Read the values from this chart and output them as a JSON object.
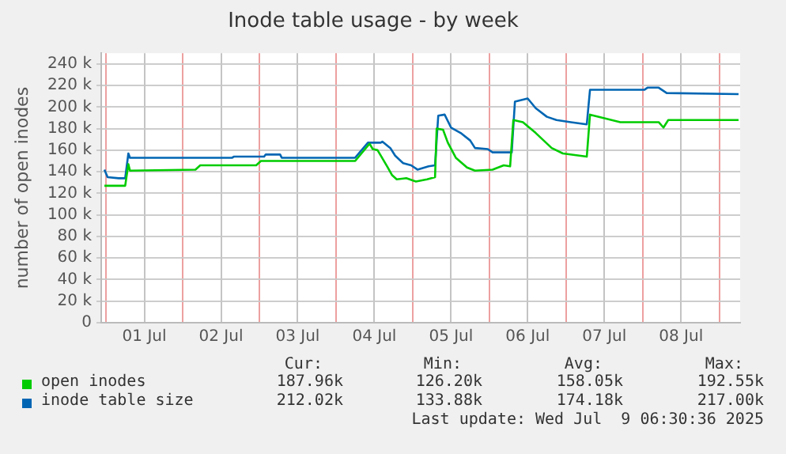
{
  "chart_data": {
    "type": "line",
    "title": "Inode table usage - by week",
    "ylabel": "number of open inodes",
    "legend": "bottom",
    "grid": true,
    "marker": "none",
    "line_style": "solid",
    "xlim": [
      "2025-06-30T22:30",
      "2025-07-09T06:30"
    ],
    "xticks": [
      {
        "value": "2025-07-01T00:00",
        "label": null
      },
      {
        "value": "2025-07-01T12:00",
        "label": "01 Jul"
      },
      {
        "value": "2025-07-02T00:00",
        "label": null
      },
      {
        "value": "2025-07-02T12:00",
        "label": "02 Jul"
      },
      {
        "value": "2025-07-03T00:00",
        "label": null
      },
      {
        "value": "2025-07-03T12:00",
        "label": "03 Jul"
      },
      {
        "value": "2025-07-04T00:00",
        "label": null
      },
      {
        "value": "2025-07-04T12:00",
        "label": "04 Jul"
      },
      {
        "value": "2025-07-05T00:00",
        "label": null
      },
      {
        "value": "2025-07-05T12:00",
        "label": "05 Jul"
      },
      {
        "value": "2025-07-06T00:00",
        "label": null
      },
      {
        "value": "2025-07-06T12:00",
        "label": "06 Jul"
      },
      {
        "value": "2025-07-07T00:00",
        "label": null
      },
      {
        "value": "2025-07-07T12:00",
        "label": "07 Jul"
      },
      {
        "value": "2025-07-08T00:00",
        "label": null
      },
      {
        "value": "2025-07-08T12:00",
        "label": "08 Jul"
      },
      {
        "value": "2025-07-09T00:00",
        "label": null
      }
    ],
    "ylim": [
      0,
      250000
    ],
    "yticks": [
      {
        "value": 0,
        "label": "0"
      },
      {
        "value": 20000,
        "label": "20 k"
      },
      {
        "value": 40000,
        "label": "40 k"
      },
      {
        "value": 60000,
        "label": "60 k"
      },
      {
        "value": 80000,
        "label": "80 k"
      },
      {
        "value": 100000,
        "label": "100 k"
      },
      {
        "value": 120000,
        "label": "120 k"
      },
      {
        "value": 140000,
        "label": "140 k"
      },
      {
        "value": 160000,
        "label": "160 k"
      },
      {
        "value": 180000,
        "label": "180 k"
      },
      {
        "value": 200000,
        "label": "200 k"
      },
      {
        "value": 220000,
        "label": "220 k"
      },
      {
        "value": 240000,
        "label": "240 k"
      }
    ],
    "series": [
      {
        "name": "open inodes",
        "color": "#00cc00",
        "x": [
          "2025-06-30T23:30",
          "2025-07-01T06:00",
          "2025-07-01T07:00",
          "2025-07-01T07:30",
          "2025-07-02T04:00",
          "2025-07-02T05:30",
          "2025-07-02T23:00",
          "2025-07-03T00:30",
          "2025-07-04T06:00",
          "2025-07-04T10:30",
          "2025-07-04T11:30",
          "2025-07-04T13:00",
          "2025-07-04T14:00",
          "2025-07-04T16:00",
          "2025-07-04T17:30",
          "2025-07-04T19:00",
          "2025-07-04T22:00",
          "2025-07-05T01:00",
          "2025-07-05T04:30",
          "2025-07-05T07:00",
          "2025-07-05T07:30",
          "2025-07-05T09:30",
          "2025-07-05T11:00",
          "2025-07-05T13:30",
          "2025-07-05T17:00",
          "2025-07-05T19:30",
          "2025-07-06T01:00",
          "2025-07-06T04:30",
          "2025-07-06T06:30",
          "2025-07-06T07:30",
          "2025-07-06T10:30",
          "2025-07-06T14:30",
          "2025-07-06T19:30",
          "2025-07-06T23:00",
          "2025-07-07T06:30",
          "2025-07-07T07:30",
          "2025-07-07T11:30",
          "2025-07-07T17:00",
          "2025-07-08T05:00",
          "2025-07-08T06:30",
          "2025-07-08T08:00",
          "2025-07-09T06:00"
        ],
        "values": [
          127000,
          127000,
          147000,
          141000,
          142000,
          146000,
          146000,
          150000,
          150000,
          166000,
          161000,
          160000,
          155000,
          145000,
          137000,
          133000,
          134000,
          131000,
          133000,
          135000,
          180000,
          179000,
          167000,
          153000,
          144000,
          141000,
          142000,
          146000,
          145000,
          188000,
          186000,
          176000,
          162000,
          157000,
          154000,
          193000,
          190000,
          186000,
          186000,
          181000,
          188000,
          188000
        ]
      },
      {
        "name": "inode table size",
        "color": "#0066b3",
        "x": [
          "2025-06-30T23:30",
          "2025-07-01T00:30",
          "2025-07-01T04:00",
          "2025-07-01T06:00",
          "2025-07-01T07:00",
          "2025-07-01T07:30",
          "2025-07-02T15:30",
          "2025-07-02T16:00",
          "2025-07-03T01:30",
          "2025-07-03T02:00",
          "2025-07-03T06:30",
          "2025-07-03T07:00",
          "2025-07-04T06:00",
          "2025-07-04T10:00",
          "2025-07-04T14:00",
          "2025-07-04T14:30",
          "2025-07-04T17:00",
          "2025-07-04T18:30",
          "2025-07-04T21:00",
          "2025-07-04T23:30",
          "2025-07-05T01:30",
          "2025-07-05T05:00",
          "2025-07-05T07:00",
          "2025-07-05T08:00",
          "2025-07-05T10:00",
          "2025-07-05T12:00",
          "2025-07-05T15:00",
          "2025-07-05T18:00",
          "2025-07-05T19:30",
          "2025-07-05T23:30",
          "2025-07-06T01:00",
          "2025-07-06T07:00",
          "2025-07-06T08:00",
          "2025-07-06T12:00",
          "2025-07-06T14:30",
          "2025-07-06T18:00",
          "2025-07-06T21:00",
          "2025-07-07T01:30",
          "2025-07-07T06:30",
          "2025-07-07T07:30",
          "2025-07-08T00:30",
          "2025-07-08T01:30",
          "2025-07-08T05:00",
          "2025-07-08T07:30",
          "2025-07-09T06:00"
        ],
        "values": [
          142000,
          135000,
          134000,
          134000,
          157000,
          153000,
          153000,
          154000,
          154000,
          156000,
          156000,
          153000,
          153000,
          167000,
          167000,
          168000,
          162000,
          155000,
          148000,
          146000,
          142000,
          145000,
          146000,
          192000,
          193000,
          181000,
          176000,
          169000,
          162000,
          161000,
          158000,
          158000,
          205000,
          208000,
          199000,
          191000,
          188000,
          186000,
          184000,
          216000,
          216000,
          218000,
          218000,
          213000,
          212000
        ]
      }
    ],
    "annotations": [
      "Cur:",
      "Min:",
      "Avg:",
      "Max:",
      "187.96k",
      "126.20k",
      "158.05k",
      "192.55k",
      "212.02k",
      "133.88k",
      "174.18k",
      "217.00k",
      "Last update: Wed Jul  9 06:30:36 2025"
    ]
  }
}
